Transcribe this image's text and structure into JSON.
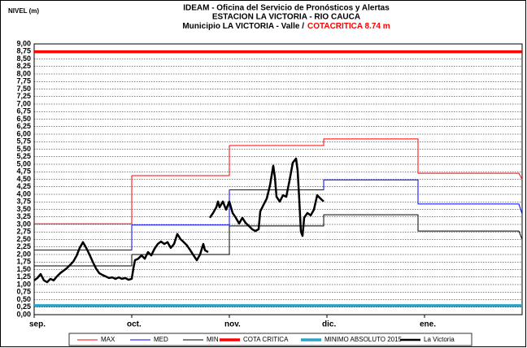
{
  "chart_data": {
    "type": "line",
    "title": [
      "IDEAM - Oficina del Servicio de Pronósticos y Alertas",
      "ESTACION LA VICTORIA - RIO CAUCA",
      "Municipio LA VICTORIA - Valle /"
    ],
    "annotation": "COTACRITICA 8.74 m",
    "y_label": "NIVEL (m)",
    "xlim": [
      0,
      150
    ],
    "xticks": [
      {
        "value": 0,
        "label": "sep."
      },
      {
        "value": 30,
        "label": "oct."
      },
      {
        "value": 60,
        "label": "nov."
      },
      {
        "value": 90,
        "label": "dic."
      },
      {
        "value": 120,
        "label": "ene."
      }
    ],
    "ylim": [
      0,
      9
    ],
    "yticks": [
      {
        "value": 0,
        "label": "0,00"
      },
      {
        "value": 0.25,
        "label": "0,25"
      },
      {
        "value": 0.5,
        "label": "0,50"
      },
      {
        "value": 0.75,
        "label": "0,75"
      },
      {
        "value": 1,
        "label": "1,00"
      },
      {
        "value": 1.25,
        "label": "1,25"
      },
      {
        "value": 1.5,
        "label": "1,50"
      },
      {
        "value": 1.75,
        "label": "1,75"
      },
      {
        "value": 2,
        "label": "2,00"
      },
      {
        "value": 2.25,
        "label": "2,25"
      },
      {
        "value": 2.5,
        "label": "2,50"
      },
      {
        "value": 2.75,
        "label": "2,75"
      },
      {
        "value": 3,
        "label": "3,00"
      },
      {
        "value": 3.25,
        "label": "3,25"
      },
      {
        "value": 3.5,
        "label": "3,50"
      },
      {
        "value": 3.75,
        "label": "3,75"
      },
      {
        "value": 4,
        "label": "4,00"
      },
      {
        "value": 4.25,
        "label": "4,25"
      },
      {
        "value": 4.5,
        "label": "4,50"
      },
      {
        "value": 4.75,
        "label": "4,75"
      },
      {
        "value": 5,
        "label": "5,00"
      },
      {
        "value": 5.25,
        "label": "5,25"
      },
      {
        "value": 5.5,
        "label": "5,50"
      },
      {
        "value": 5.75,
        "label": "5,75"
      },
      {
        "value": 6,
        "label": "6,00"
      },
      {
        "value": 6.25,
        "label": "6,25"
      },
      {
        "value": 6.5,
        "label": "6,50"
      },
      {
        "value": 6.75,
        "label": "6,75"
      },
      {
        "value": 7,
        "label": "7,00"
      },
      {
        "value": 7.25,
        "label": "7,25"
      },
      {
        "value": 7.5,
        "label": "7,50"
      },
      {
        "value": 7.75,
        "label": "7,75"
      },
      {
        "value": 8,
        "label": "8,00"
      },
      {
        "value": 8.25,
        "label": "8,25"
      },
      {
        "value": 8.5,
        "label": "8,50"
      },
      {
        "value": 8.75,
        "label": "8,75"
      },
      {
        "value": 9,
        "label": "9,00"
      }
    ],
    "grid": true,
    "legend": "bottom",
    "series": [
      {
        "name": "MAX",
        "color": "#ff0000",
        "linewidth": 1,
        "x": [
          0,
          30,
          30,
          60,
          60,
          89,
          89,
          118,
          118,
          149,
          150
        ],
        "values": [
          3.02,
          3.02,
          4.62,
          4.62,
          5.62,
          5.62,
          5.84,
          5.84,
          4.7,
          4.7,
          4.5
        ]
      },
      {
        "name": "MED",
        "color": "#0000ff",
        "linewidth": 1,
        "x": [
          0,
          30,
          30,
          60,
          60,
          89,
          89,
          118,
          118,
          149,
          150
        ],
        "values": [
          2.15,
          2.15,
          2.98,
          2.98,
          4.15,
          4.15,
          4.48,
          4.48,
          3.68,
          3.68,
          3.35
        ]
      },
      {
        "name": "MIN",
        "color": "#000000",
        "linewidth": 1,
        "x": [
          0,
          30,
          30,
          60,
          60,
          89,
          89,
          118,
          118,
          149,
          150
        ],
        "values": [
          1.62,
          1.62,
          2.0,
          2.0,
          2.95,
          2.95,
          3.32,
          3.32,
          2.78,
          2.78,
          2.5
        ]
      },
      {
        "name": "COTA CRITICA",
        "color": "#ff0000",
        "linewidth": 3.5,
        "x": [
          0,
          150
        ],
        "values": [
          8.74,
          8.74
        ]
      },
      {
        "name": "MINIMO ABSOLUTO 2015",
        "color": "#2aa3c9",
        "linewidth": 3.5,
        "x": [
          0,
          150
        ],
        "values": [
          0.3,
          0.3
        ]
      },
      {
        "name": "La Victoria",
        "color": "#000000",
        "linewidth": 2.5,
        "x": [
          0,
          1,
          2,
          3,
          4,
          5,
          6,
          7,
          8,
          9,
          10,
          11,
          12,
          13,
          14,
          15,
          16,
          17,
          18,
          19,
          20,
          21,
          22,
          23,
          24,
          25,
          26,
          27,
          28,
          29,
          30,
          30.5,
          31,
          32,
          33,
          34,
          35,
          36,
          37,
          38,
          39,
          40,
          41,
          42,
          43,
          44,
          45,
          46,
          47,
          48,
          49,
          50,
          51,
          52,
          52.5,
          53.5,
          null,
          54,
          55,
          56,
          56.5,
          57,
          58,
          59,
          60,
          61,
          62,
          63,
          64,
          65,
          66,
          67,
          68,
          69,
          69.5,
          70.5,
          71.5,
          72.5,
          73.5,
          74,
          74.5,
          75.5,
          76.5,
          77.5,
          78.5,
          79.5,
          80.5,
          81,
          81.5,
          82,
          82.5,
          83,
          84,
          85,
          86,
          87,
          88,
          89
        ],
        "values": [
          1.14,
          1.22,
          1.35,
          1.14,
          1.08,
          1.19,
          1.14,
          1.27,
          1.38,
          1.46,
          1.54,
          1.65,
          1.76,
          1.95,
          2.22,
          2.41,
          2.22,
          2.0,
          1.76,
          1.54,
          1.38,
          1.32,
          1.27,
          1.22,
          1.24,
          1.19,
          1.24,
          1.19,
          1.22,
          1.16,
          1.19,
          1.54,
          1.81,
          1.86,
          1.97,
          1.86,
          2.08,
          1.97,
          2.19,
          2.35,
          2.43,
          2.35,
          2.41,
          2.22,
          2.35,
          2.68,
          2.51,
          2.41,
          2.3,
          2.14,
          1.97,
          1.81,
          2.0,
          2.35,
          2.14,
          2.08,
          null,
          3.22,
          3.38,
          3.57,
          3.76,
          3.57,
          3.76,
          3.49,
          3.76,
          3.38,
          3.22,
          3.03,
          3.22,
          3.05,
          2.95,
          2.84,
          2.78,
          2.84,
          3.43,
          3.65,
          3.86,
          4.3,
          4.95,
          4.57,
          3.92,
          3.76,
          3.97,
          3.92,
          4.46,
          5.05,
          5.19,
          4.78,
          3.81,
          2.76,
          2.62,
          3.22,
          3.38,
          3.3,
          3.49,
          3.97,
          3.86,
          3.76
        ]
      }
    ]
  }
}
